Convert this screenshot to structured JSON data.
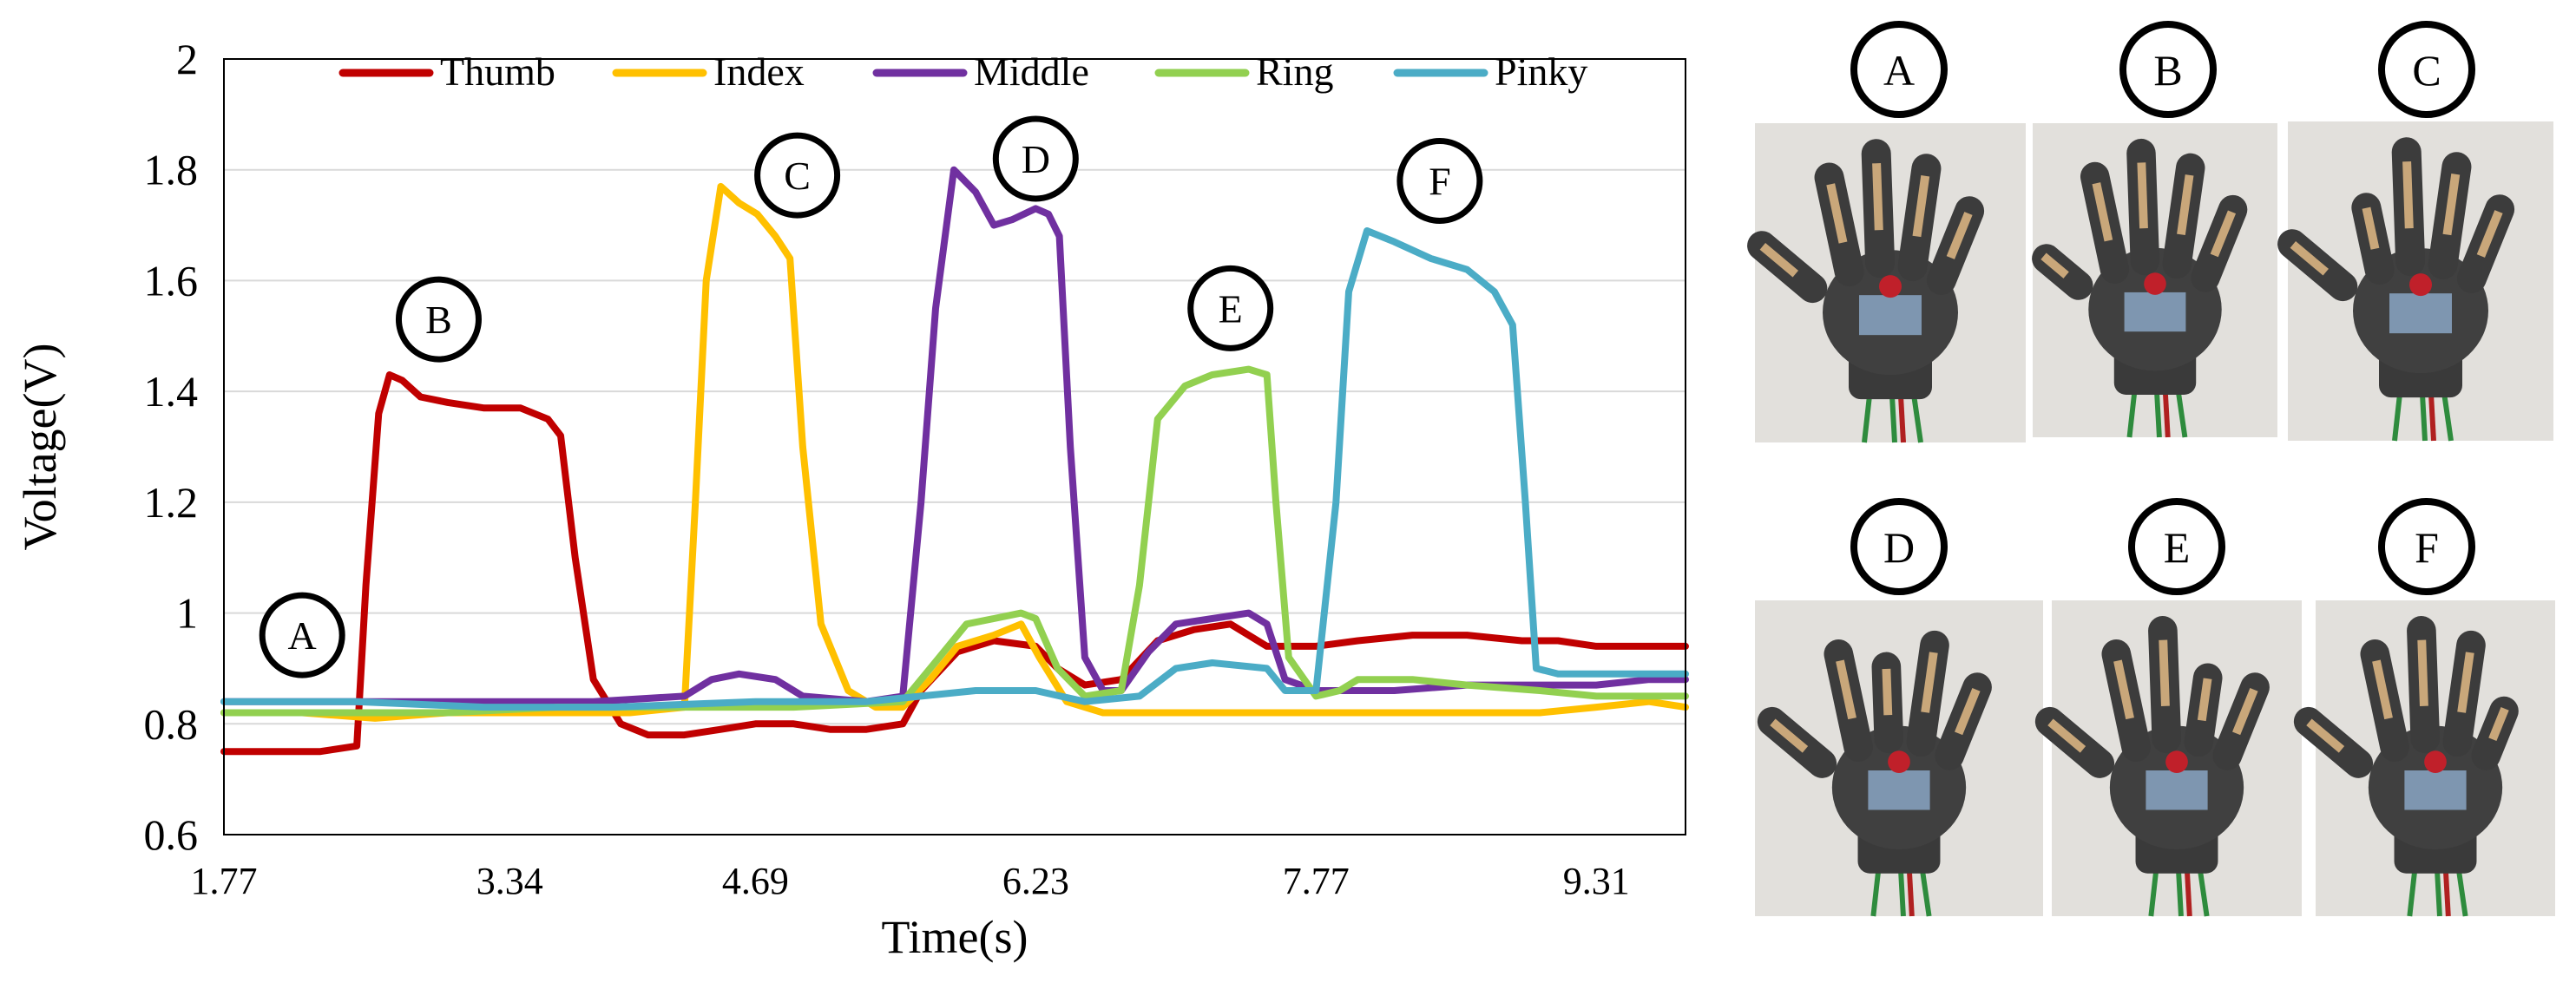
{
  "chart_data": {
    "type": "line",
    "title": "",
    "xlabel": "Time(s)",
    "ylabel": "Voltage(V)",
    "xlim": [
      1.77,
      9.8
    ],
    "ylim": [
      0.6,
      2.0
    ],
    "grid": true,
    "legend_position": "top",
    "x_ticks": [
      1.77,
      3.34,
      4.69,
      6.23,
      7.77,
      9.31
    ],
    "x_tick_labels": [
      "1.77",
      "3.34",
      "4.69",
      "6.23",
      "7.77",
      "9.31"
    ],
    "y_ticks": [
      0.6,
      0.8,
      1.0,
      1.2,
      1.4,
      1.6,
      1.8,
      2.0
    ],
    "y_tick_labels": [
      "0.6",
      "0.8",
      "1",
      "1.2",
      "1.4",
      "1.6",
      "1.8",
      "2"
    ],
    "series": [
      {
        "name": "Thumb",
        "color": "#c00000",
        "points": [
          [
            1.77,
            0.75
          ],
          [
            2.1,
            0.75
          ],
          [
            2.3,
            0.75
          ],
          [
            2.5,
            0.76
          ],
          [
            2.55,
            1.05
          ],
          [
            2.62,
            1.36
          ],
          [
            2.68,
            1.43
          ],
          [
            2.75,
            1.42
          ],
          [
            2.85,
            1.39
          ],
          [
            3.0,
            1.38
          ],
          [
            3.2,
            1.37
          ],
          [
            3.4,
            1.37
          ],
          [
            3.55,
            1.35
          ],
          [
            3.62,
            1.32
          ],
          [
            3.7,
            1.1
          ],
          [
            3.8,
            0.88
          ],
          [
            3.95,
            0.8
          ],
          [
            4.1,
            0.78
          ],
          [
            4.3,
            0.78
          ],
          [
            4.5,
            0.79
          ],
          [
            4.69,
            0.8
          ],
          [
            4.9,
            0.8
          ],
          [
            5.1,
            0.79
          ],
          [
            5.3,
            0.79
          ],
          [
            5.5,
            0.8
          ],
          [
            5.6,
            0.86
          ],
          [
            5.8,
            0.93
          ],
          [
            6.0,
            0.95
          ],
          [
            6.23,
            0.94
          ],
          [
            6.35,
            0.9
          ],
          [
            6.5,
            0.87
          ],
          [
            6.7,
            0.88
          ],
          [
            6.9,
            0.95
          ],
          [
            7.1,
            0.97
          ],
          [
            7.3,
            0.98
          ],
          [
            7.5,
            0.94
          ],
          [
            7.77,
            0.94
          ],
          [
            8.0,
            0.95
          ],
          [
            8.3,
            0.96
          ],
          [
            8.6,
            0.96
          ],
          [
            8.9,
            0.95
          ],
          [
            9.1,
            0.95
          ],
          [
            9.31,
            0.94
          ],
          [
            9.6,
            0.94
          ],
          [
            9.8,
            0.94
          ]
        ]
      },
      {
        "name": "Index",
        "color": "#ffc000",
        "points": [
          [
            1.77,
            0.82
          ],
          [
            2.2,
            0.82
          ],
          [
            2.6,
            0.81
          ],
          [
            3.0,
            0.82
          ],
          [
            3.5,
            0.82
          ],
          [
            4.0,
            0.82
          ],
          [
            4.3,
            0.83
          ],
          [
            4.36,
            1.2
          ],
          [
            4.42,
            1.6
          ],
          [
            4.5,
            1.77
          ],
          [
            4.6,
            1.74
          ],
          [
            4.7,
            1.72
          ],
          [
            4.8,
            1.68
          ],
          [
            4.88,
            1.64
          ],
          [
            4.95,
            1.3
          ],
          [
            5.05,
            0.98
          ],
          [
            5.2,
            0.86
          ],
          [
            5.35,
            0.83
          ],
          [
            5.5,
            0.83
          ],
          [
            5.65,
            0.88
          ],
          [
            5.8,
            0.94
          ],
          [
            6.0,
            0.96
          ],
          [
            6.15,
            0.98
          ],
          [
            6.25,
            0.92
          ],
          [
            6.4,
            0.84
          ],
          [
            6.6,
            0.82
          ],
          [
            6.9,
            0.82
          ],
          [
            7.2,
            0.82
          ],
          [
            7.5,
            0.82
          ],
          [
            7.77,
            0.82
          ],
          [
            8.2,
            0.82
          ],
          [
            8.6,
            0.82
          ],
          [
            9.0,
            0.82
          ],
          [
            9.31,
            0.83
          ],
          [
            9.6,
            0.84
          ],
          [
            9.8,
            0.83
          ]
        ]
      },
      {
        "name": "Middle",
        "color": "#7030a0",
        "points": [
          [
            1.77,
            0.84
          ],
          [
            2.5,
            0.84
          ],
          [
            3.2,
            0.84
          ],
          [
            3.8,
            0.84
          ],
          [
            4.3,
            0.85
          ],
          [
            4.45,
            0.88
          ],
          [
            4.6,
            0.89
          ],
          [
            4.8,
            0.88
          ],
          [
            4.95,
            0.85
          ],
          [
            5.3,
            0.84
          ],
          [
            5.5,
            0.85
          ],
          [
            5.6,
            1.2
          ],
          [
            5.68,
            1.55
          ],
          [
            5.78,
            1.8
          ],
          [
            5.9,
            1.76
          ],
          [
            6.0,
            1.7
          ],
          [
            6.1,
            1.71
          ],
          [
            6.23,
            1.73
          ],
          [
            6.3,
            1.72
          ],
          [
            6.36,
            1.68
          ],
          [
            6.42,
            1.3
          ],
          [
            6.5,
            0.92
          ],
          [
            6.6,
            0.86
          ],
          [
            6.7,
            0.86
          ],
          [
            6.85,
            0.93
          ],
          [
            7.0,
            0.98
          ],
          [
            7.2,
            0.99
          ],
          [
            7.4,
            1.0
          ],
          [
            7.5,
            0.98
          ],
          [
            7.6,
            0.88
          ],
          [
            7.77,
            0.86
          ],
          [
            8.2,
            0.86
          ],
          [
            8.6,
            0.87
          ],
          [
            9.0,
            0.87
          ],
          [
            9.31,
            0.87
          ],
          [
            9.6,
            0.88
          ],
          [
            9.8,
            0.88
          ]
        ]
      },
      {
        "name": "Ring",
        "color": "#92d050",
        "points": [
          [
            1.77,
            0.82
          ],
          [
            2.4,
            0.82
          ],
          [
            3.0,
            0.82
          ],
          [
            3.6,
            0.83
          ],
          [
            4.2,
            0.83
          ],
          [
            4.9,
            0.83
          ],
          [
            5.5,
            0.84
          ],
          [
            5.7,
            0.92
          ],
          [
            5.85,
            0.98
          ],
          [
            6.0,
            0.99
          ],
          [
            6.15,
            1.0
          ],
          [
            6.23,
            0.99
          ],
          [
            6.35,
            0.9
          ],
          [
            6.5,
            0.85
          ],
          [
            6.7,
            0.86
          ],
          [
            6.8,
            1.05
          ],
          [
            6.9,
            1.35
          ],
          [
            7.05,
            1.41
          ],
          [
            7.2,
            1.43
          ],
          [
            7.4,
            1.44
          ],
          [
            7.5,
            1.43
          ],
          [
            7.55,
            1.2
          ],
          [
            7.62,
            0.92
          ],
          [
            7.77,
            0.85
          ],
          [
            7.9,
            0.86
          ],
          [
            8.0,
            0.88
          ],
          [
            8.3,
            0.88
          ],
          [
            8.6,
            0.87
          ],
          [
            9.0,
            0.86
          ],
          [
            9.31,
            0.85
          ],
          [
            9.6,
            0.85
          ],
          [
            9.8,
            0.85
          ]
        ]
      },
      {
        "name": "Pinky",
        "color": "#4bacc6",
        "points": [
          [
            1.77,
            0.84
          ],
          [
            2.5,
            0.84
          ],
          [
            3.2,
            0.83
          ],
          [
            3.9,
            0.83
          ],
          [
            4.69,
            0.84
          ],
          [
            5.3,
            0.84
          ],
          [
            5.6,
            0.85
          ],
          [
            5.9,
            0.86
          ],
          [
            6.23,
            0.86
          ],
          [
            6.5,
            0.84
          ],
          [
            6.8,
            0.85
          ],
          [
            7.0,
            0.9
          ],
          [
            7.2,
            0.91
          ],
          [
            7.5,
            0.9
          ],
          [
            7.6,
            0.86
          ],
          [
            7.77,
            0.86
          ],
          [
            7.88,
            1.2
          ],
          [
            7.95,
            1.58
          ],
          [
            8.05,
            1.69
          ],
          [
            8.2,
            1.67
          ],
          [
            8.4,
            1.64
          ],
          [
            8.6,
            1.62
          ],
          [
            8.75,
            1.58
          ],
          [
            8.85,
            1.52
          ],
          [
            8.92,
            1.2
          ],
          [
            8.98,
            0.9
          ],
          [
            9.1,
            0.89
          ],
          [
            9.31,
            0.89
          ],
          [
            9.6,
            0.89
          ],
          [
            9.8,
            0.89
          ]
        ]
      }
    ],
    "annotations": [
      {
        "label": "A",
        "x": 2.2,
        "y": 0.96
      },
      {
        "label": "B",
        "x": 2.95,
        "y": 1.53
      },
      {
        "label": "C",
        "x": 4.92,
        "y": 1.79
      },
      {
        "label": "D",
        "x": 6.23,
        "y": 1.82
      },
      {
        "label": "E",
        "x": 7.3,
        "y": 1.55
      },
      {
        "label": "F",
        "x": 8.45,
        "y": 1.78
      }
    ]
  },
  "photos": {
    "labels": [
      "A",
      "B",
      "C",
      "D",
      "E",
      "F"
    ]
  }
}
